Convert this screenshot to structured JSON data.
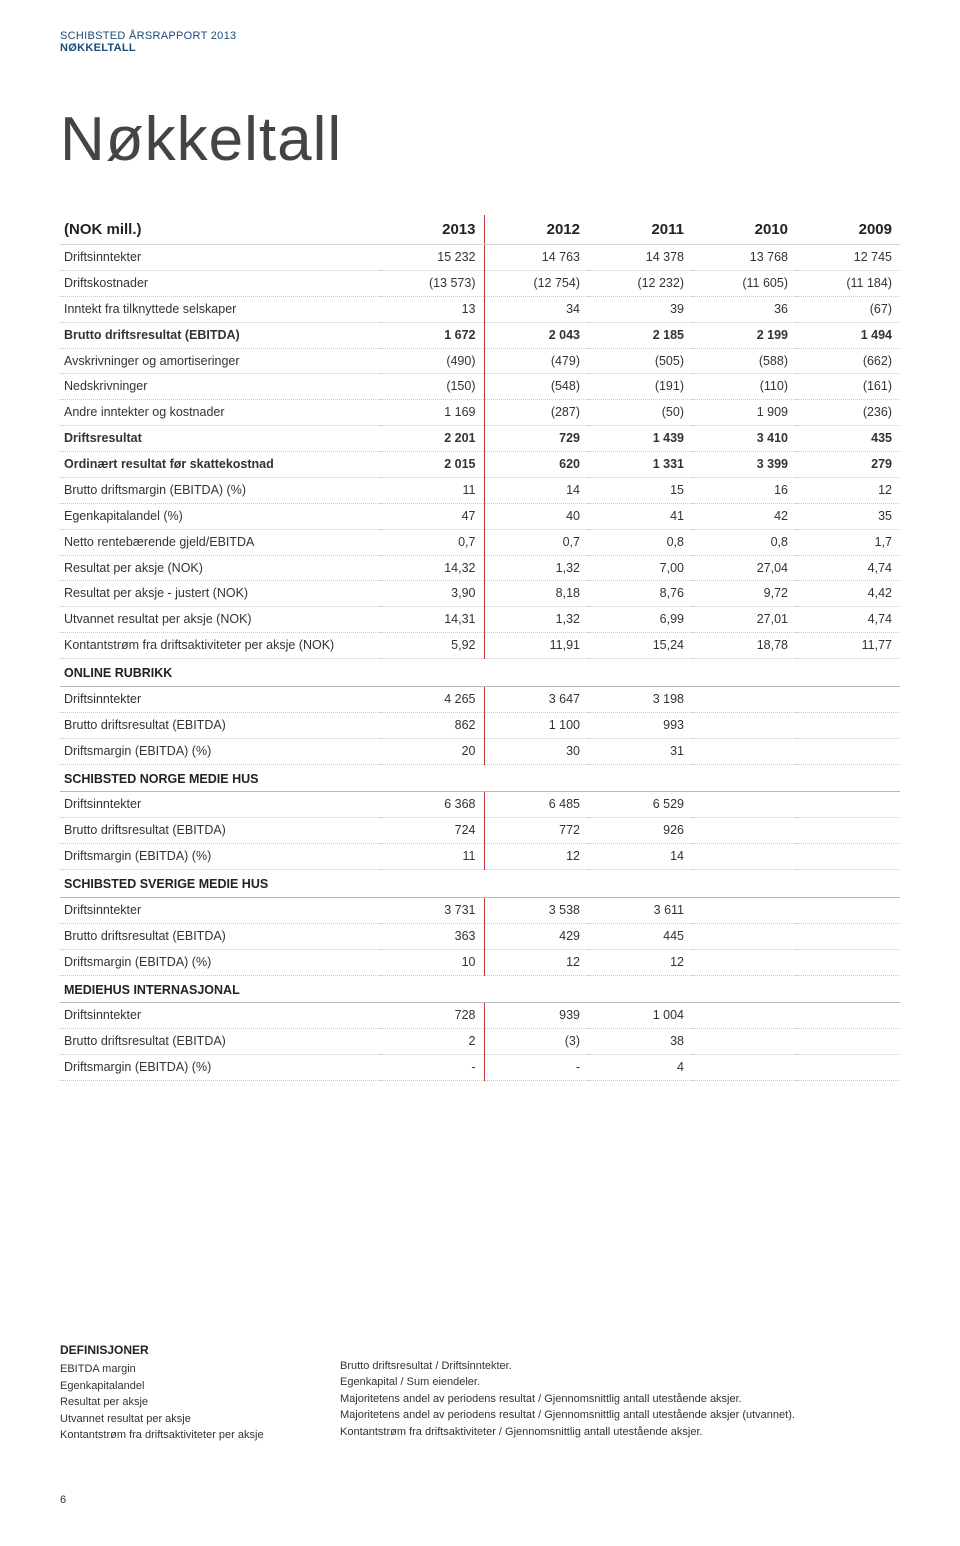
{
  "header": {
    "line1": "SCHIBSTED ÅRSRAPPORT 2013",
    "line2": "NØKKELTALL"
  },
  "title": "Nøkkeltall",
  "unitLabel": "(NOK mill.)",
  "years": [
    "2013",
    "2012",
    "2011",
    "2010",
    "2009"
  ],
  "rows": [
    {
      "label": "Driftsinntekter",
      "v": [
        "15 232",
        "14 763",
        "14 378",
        "13 768",
        "12 745"
      ]
    },
    {
      "label": "Driftskostnader",
      "v": [
        "(13 573)",
        "(12 754)",
        "(12 232)",
        "(11 605)",
        "(11 184)"
      ]
    },
    {
      "label": "Inntekt fra tilknyttede selskaper",
      "v": [
        "13",
        "34",
        "39",
        "36",
        "(67)"
      ]
    },
    {
      "label": "Brutto driftsresultat (EBITDA)",
      "v": [
        "1 672",
        "2 043",
        "2 185",
        "2 199",
        "1 494"
      ],
      "bold": true
    },
    {
      "label": "Avskrivninger og amortiseringer",
      "v": [
        "(490)",
        "(479)",
        "(505)",
        "(588)",
        "(662)"
      ]
    },
    {
      "label": "Nedskrivninger",
      "v": [
        "(150)",
        "(548)",
        "(191)",
        "(110)",
        "(161)"
      ]
    },
    {
      "label": "Andre inntekter og kostnader",
      "v": [
        "1 169",
        "(287)",
        "(50)",
        "1 909",
        "(236)"
      ]
    },
    {
      "label": "Driftsresultat",
      "v": [
        "2 201",
        "729",
        "1 439",
        "3 410",
        "435"
      ],
      "bold": true
    },
    {
      "label": "Ordinært resultat før skattekostnad",
      "v": [
        "2 015",
        "620",
        "1 331",
        "3 399",
        "279"
      ],
      "bold": true
    },
    {
      "label": "Brutto driftsmargin (EBITDA) (%)",
      "v": [
        "11",
        "14",
        "15",
        "16",
        "12"
      ]
    },
    {
      "label": "Egenkapitalandel (%)",
      "v": [
        "47",
        "40",
        "41",
        "42",
        "35"
      ]
    },
    {
      "label": "Netto rentebærende gjeld/EBITDA",
      "v": [
        "0,7",
        "0,7",
        "0,8",
        "0,8",
        "1,7"
      ]
    },
    {
      "label": "Resultat per aksje (NOK)",
      "v": [
        "14,32",
        "1,32",
        "7,00",
        "27,04",
        "4,74"
      ]
    },
    {
      "label": "Resultat per aksje - justert (NOK)",
      "v": [
        "3,90",
        "8,18",
        "8,76",
        "9,72",
        "4,42"
      ]
    },
    {
      "label": "Utvannet resultat per aksje (NOK)",
      "v": [
        "14,31",
        "1,32",
        "6,99",
        "27,01",
        "4,74"
      ]
    },
    {
      "label": "Kontantstrøm fra driftsaktiviteter per aksje (NOK)",
      "v": [
        "5,92",
        "11,91",
        "15,24",
        "18,78",
        "11,77"
      ]
    },
    {
      "section": "ONLINE RUBRIKK"
    },
    {
      "label": "Driftsinntekter",
      "v": [
        "4 265",
        "3 647",
        "3 198",
        "",
        ""
      ]
    },
    {
      "label": "Brutto driftsresultat (EBITDA)",
      "v": [
        "862",
        "1 100",
        "993",
        "",
        ""
      ]
    },
    {
      "label": "Driftsmargin (EBITDA) (%)",
      "v": [
        "20",
        "30",
        "31",
        "",
        ""
      ]
    },
    {
      "section": "SCHIBSTED NORGE MEDIE HUS"
    },
    {
      "label": "Driftsinntekter",
      "v": [
        "6 368",
        "6 485",
        "6 529",
        "",
        ""
      ]
    },
    {
      "label": "Brutto driftsresultat (EBITDA)",
      "v": [
        "724",
        "772",
        "926",
        "",
        ""
      ]
    },
    {
      "label": "Driftsmargin (EBITDA) (%)",
      "v": [
        "11",
        "12",
        "14",
        "",
        ""
      ]
    },
    {
      "section": "SCHIBSTED SVERIGE MEDIE HUS"
    },
    {
      "label": "Driftsinntekter",
      "v": [
        "3 731",
        "3 538",
        "3 611",
        "",
        ""
      ]
    },
    {
      "label": "Brutto driftsresultat (EBITDA)",
      "v": [
        "363",
        "429",
        "445",
        "",
        ""
      ]
    },
    {
      "label": "Driftsmargin (EBITDA) (%)",
      "v": [
        "10",
        "12",
        "12",
        "",
        ""
      ]
    },
    {
      "section": "MEDIEHUS INTERNASJONAL"
    },
    {
      "label": "Driftsinntekter",
      "v": [
        "728",
        "939",
        "1 004",
        "",
        ""
      ]
    },
    {
      "label": "Brutto driftsresultat (EBITDA)",
      "v": [
        "2",
        "(3)",
        "38",
        "",
        ""
      ]
    },
    {
      "label": "Driftsmargin (EBITDA) (%)",
      "v": [
        "-",
        "-",
        "4",
        "",
        ""
      ]
    }
  ],
  "defs": {
    "title": "DEFINISJONER",
    "left": [
      "EBITDA margin",
      "Egenkapitalandel",
      "Resultat per aksje",
      "Utvannet resultat per aksje",
      "Kontantstrøm fra driftsaktiviteter per aksje"
    ],
    "right": [
      "Brutto driftsresultat / Driftsinntekter.",
      "Egenkapital / Sum eiendeler.",
      "Majoritetens andel av periodens resultat / Gjennomsnittlig antall utestående aksjer.",
      "Majoritetens andel av periodens resultat / Gjennomsnittlig antall utestående aksjer (utvannet).",
      "Kontantstrøm fra driftsaktiviteter / Gjennomsnittlig antall utestående aksjer."
    ]
  },
  "pageNumber": "6",
  "style": {
    "accentColor": "#c23a3a",
    "headerColor": "#1a4a7a",
    "dottedBorder": "#c8c8c8",
    "titleFontSize": 62,
    "bodyFontSize": 12.5
  }
}
